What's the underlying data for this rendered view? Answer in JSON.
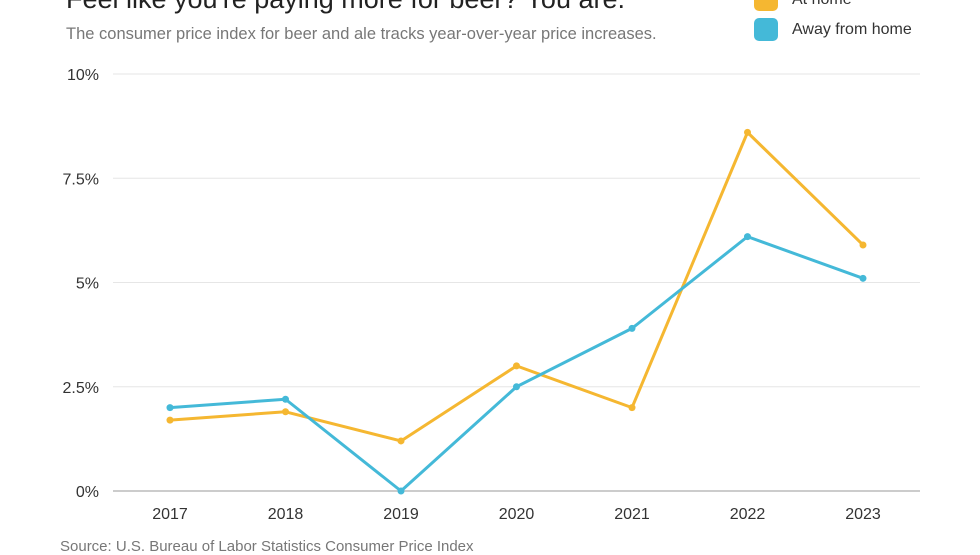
{
  "title": "Feel like you're paying more for beer? You are.",
  "subtitle": "The consumer price index for beer and ale tracks year-over-year price increases.",
  "source": "Source: U.S. Bureau of Labor Statistics Consumer Price Index",
  "legend": [
    {
      "label": "At home",
      "color": "#f5b731"
    },
    {
      "label": "Away from home",
      "color": "#44b9d8"
    }
  ],
  "chart_data": {
    "type": "line",
    "title": "Feel like you're paying more for beer? You are.",
    "subtitle": "The consumer price index for beer and ale tracks year-over-year price increases.",
    "x": [
      "2017",
      "2018",
      "2019",
      "2020",
      "2021",
      "2022",
      "2023"
    ],
    "series": [
      {
        "name": "At home",
        "color": "#f5b731",
        "values": [
          1.7,
          1.9,
          1.2,
          3.0,
          2.0,
          8.6,
          5.9
        ]
      },
      {
        "name": "Away from home",
        "color": "#44b9d8",
        "values": [
          2.0,
          2.2,
          0.0,
          2.5,
          3.9,
          6.1,
          5.1
        ]
      }
    ],
    "yticks": [
      0,
      2.5,
      5,
      7.5,
      10
    ],
    "ytick_labels": [
      "0%",
      "2.5%",
      "5%",
      "7.5%",
      "10%"
    ],
    "ylim": [
      0,
      10
    ],
    "grid": true,
    "legend_position": "top-right"
  }
}
